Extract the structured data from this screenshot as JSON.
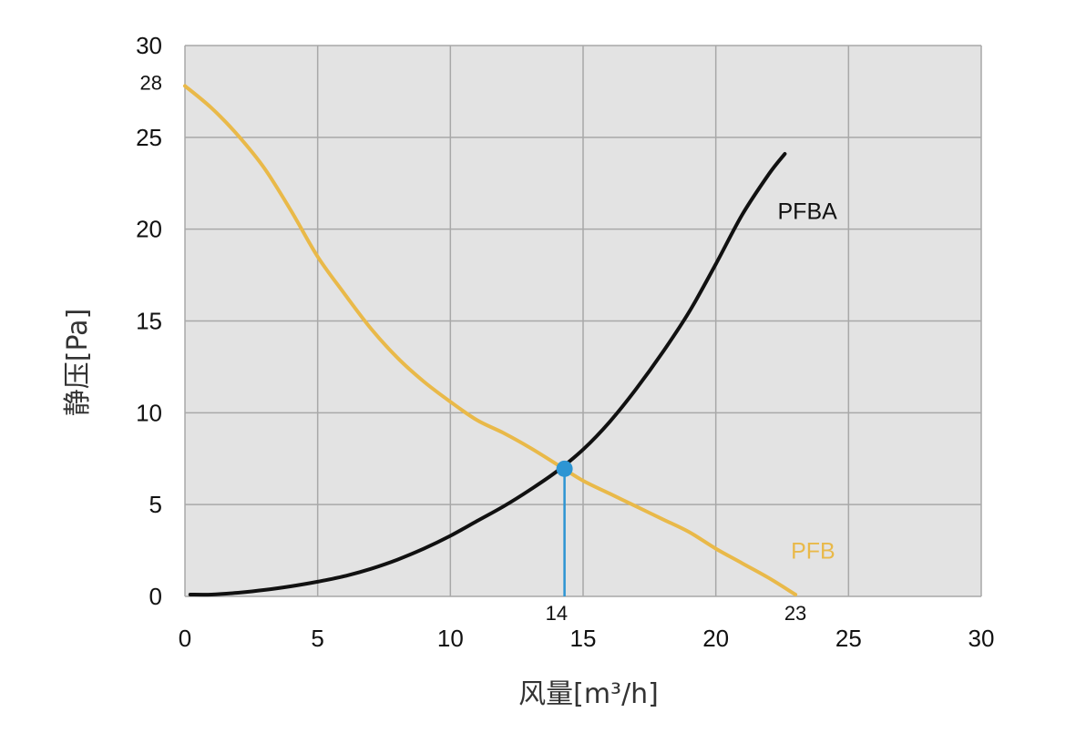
{
  "chart_data": {
    "type": "line",
    "xlabel": "风量[m³/h]",
    "ylabel": "静压[Pa]",
    "xlim": [
      0,
      30
    ],
    "ylim": [
      0,
      30
    ],
    "x_ticks": [
      "0",
      "5",
      "10",
      "15",
      "20",
      "25",
      "30"
    ],
    "y_ticks": [
      "0",
      "5",
      "10",
      "15",
      "20",
      "25",
      "30"
    ],
    "grid": true,
    "series": [
      {
        "name": "PFBA",
        "color": "#111111",
        "x": [
          0.2,
          1,
          2,
          3,
          4,
          5,
          6,
          7,
          8,
          9,
          10,
          11,
          12,
          13,
          14,
          15,
          16,
          17,
          18,
          19,
          20,
          21,
          22,
          22.6
        ],
        "y": [
          0.1,
          0.1,
          0.2,
          0.35,
          0.55,
          0.8,
          1.1,
          1.5,
          2.0,
          2.6,
          3.3,
          4.1,
          4.9,
          5.8,
          6.8,
          8.0,
          9.5,
          11.3,
          13.3,
          15.5,
          18.1,
          20.8,
          23.0,
          24.1
        ]
      },
      {
        "name": "PFB",
        "color": "#E9B949",
        "x": [
          0,
          1,
          2,
          3,
          4,
          5,
          6,
          7,
          8,
          9,
          10,
          11,
          12,
          13,
          14,
          15,
          16,
          17,
          18,
          19,
          20,
          21,
          22,
          23
        ],
        "y": [
          27.8,
          26.6,
          25.1,
          23.3,
          21.0,
          18.5,
          16.5,
          14.6,
          13.0,
          11.7,
          10.6,
          9.6,
          8.9,
          8.1,
          7.2,
          6.3,
          5.6,
          4.9,
          4.2,
          3.5,
          2.6,
          1.8,
          1.0,
          0.1
        ]
      }
    ],
    "series_labels": [
      {
        "text": "PFBA",
        "x": 22.5,
        "y": 21
      },
      {
        "text": "PFB",
        "x": 23,
        "y": 2.5
      }
    ],
    "annotations": [
      {
        "text": "28",
        "x": 0,
        "y": 28,
        "axis": "y"
      },
      {
        "text": "14",
        "x": 14,
        "y": 0,
        "axis": "x"
      },
      {
        "text": "23",
        "x": 23,
        "y": 0,
        "axis": "x"
      }
    ],
    "intersection": {
      "x": 14.3,
      "y": 6.95,
      "color": "#2D95D3"
    }
  }
}
